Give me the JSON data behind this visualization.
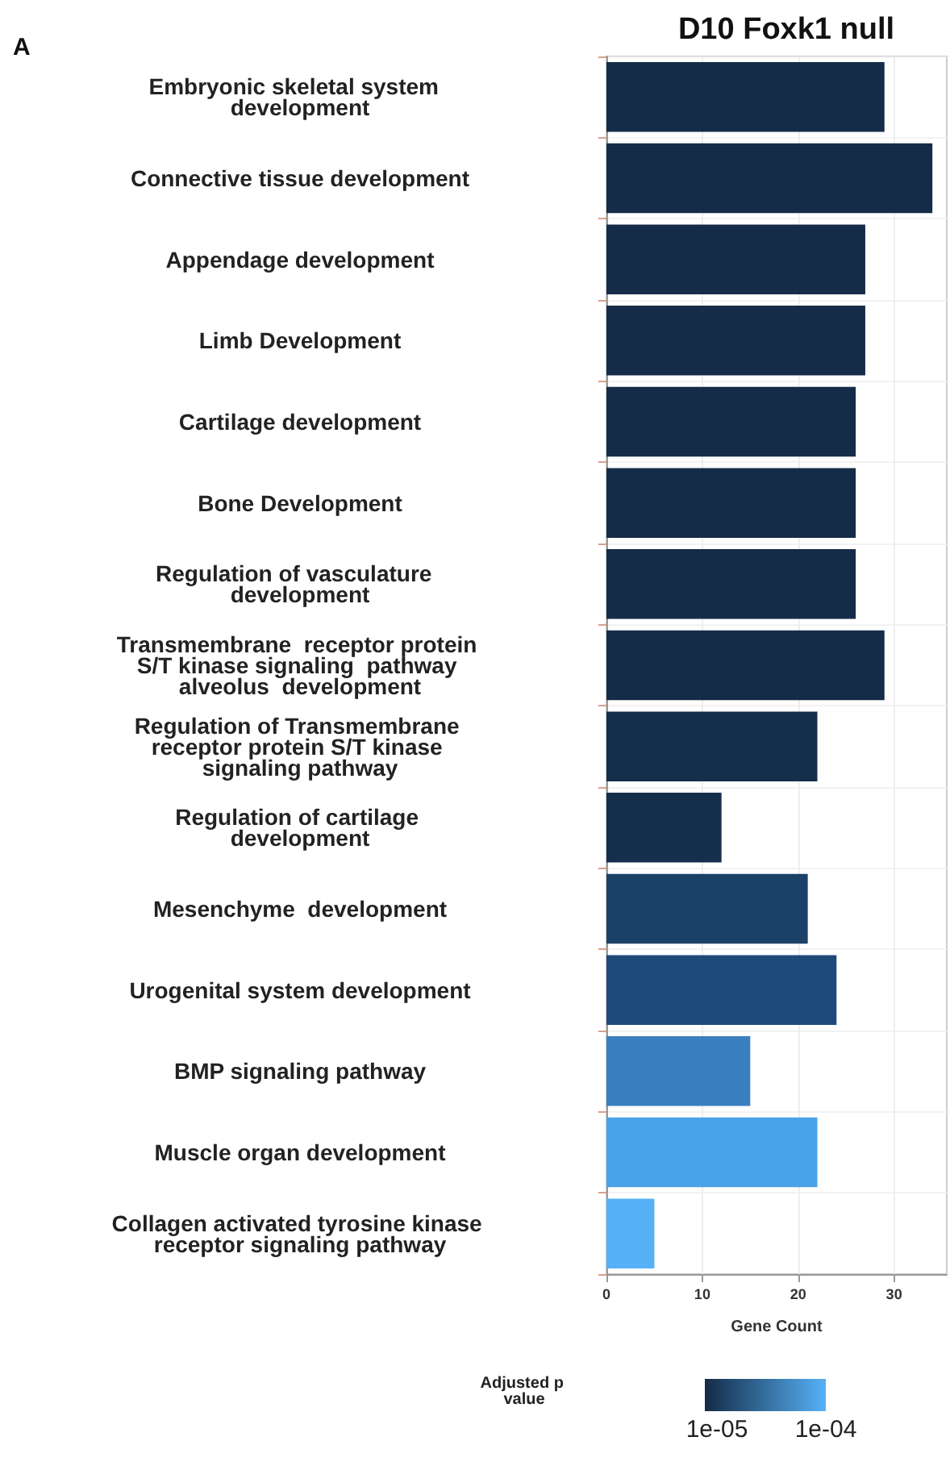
{
  "chart_data": {
    "type": "bar",
    "orientation": "horizontal",
    "title": "D10 Foxk1 null",
    "xlabel": "Gene Count",
    "clabel": "Adjusted p value",
    "annotations": [
      "A"
    ],
    "categories": [
      "Embryonic skeletal system  development",
      "Connective tissue development",
      "Appendage development",
      "Limb Development",
      "Cartilage development",
      "Bone Development",
      "Regulation of vasculature  development",
      "Transmembrane  receptor protein S/T kinase signaling  pathway alveolus  development",
      "Regulation of Transmembrane receptor protein S/T kinase signaling pathway",
      "Regulation of cartilage development",
      "Mesenchyme  development",
      "Urogenital system development",
      "BMP signaling pathway",
      "Muscle organ development",
      "Collagen activated tyrosine kinase receptor signaling pathway"
    ],
    "values": [
      29,
      34,
      27,
      27,
      26,
      26,
      26,
      29,
      22,
      12,
      21,
      24,
      15,
      22,
      5
    ],
    "colors": [
      "#142c47",
      "#142c47",
      "#142c47",
      "#142c47",
      "#142c47",
      "#142c47",
      "#142c47",
      "#142c47",
      "#152e4b",
      "#152e4b",
      "#1b4169",
      "#1e4a79",
      "#3a7fc0",
      "#4aa2e8",
      "#56b1f7"
    ],
    "xlim": [
      0,
      35.5
    ],
    "xticks": [
      0,
      10,
      20,
      30
    ],
    "clim": [
      0,
      0.0001
    ],
    "cticks": [
      {
        "value": 1e-05,
        "label": "1e-05"
      },
      {
        "value": 0.0001,
        "label": "1e-04"
      }
    ],
    "grid": true
  }
}
